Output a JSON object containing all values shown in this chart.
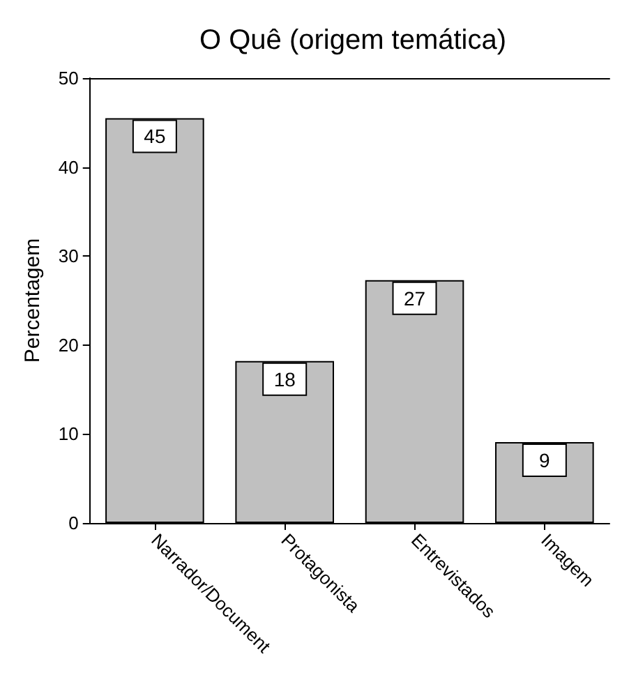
{
  "chart_data": {
    "type": "bar",
    "title": "O Quê (origem temática)",
    "ylabel": "Percentagem",
    "categories": [
      "Narrador/Document",
      "Protagonista",
      "Entrevistados",
      "Imagem"
    ],
    "values": [
      45.5,
      18.2,
      27.3,
      9.1
    ],
    "value_labels": [
      "45",
      "18",
      "27",
      "9"
    ],
    "color": "#c0c0c0",
    "ylim": [
      0,
      50
    ],
    "yticks": [
      0,
      10,
      20,
      30,
      40,
      50
    ],
    "grid": false
  }
}
